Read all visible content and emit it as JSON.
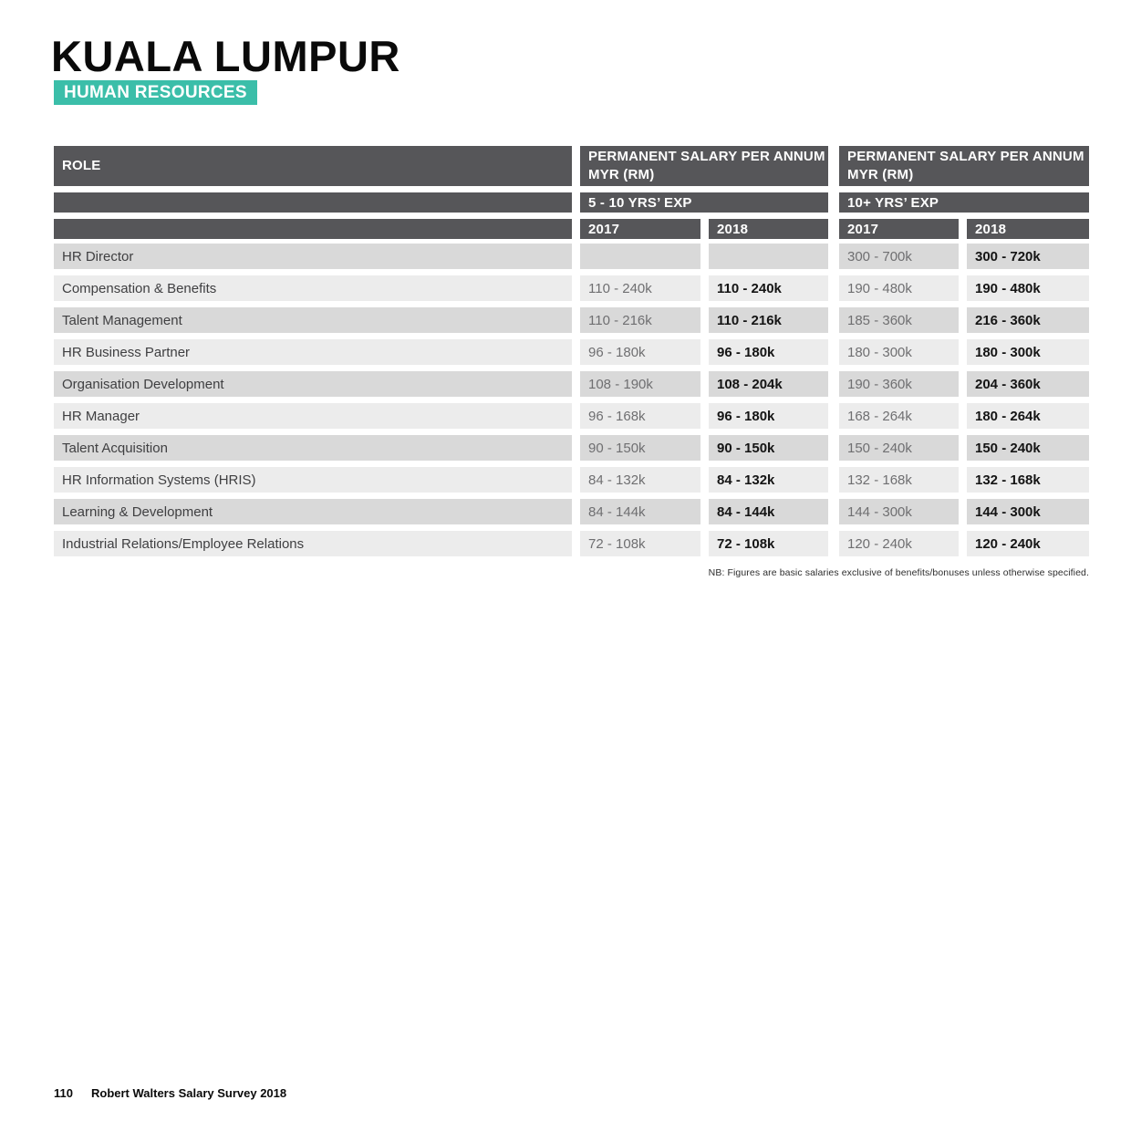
{
  "page": {
    "title": "KUALA LUMPUR",
    "category_badge": "HUMAN RESOURCES",
    "footnote": "NB: Figures are basic salaries exclusive of benefits/bonuses unless otherwise specified.",
    "footer": {
      "page_number": "110",
      "label": "Robert Walters Salary Survey 2018"
    }
  },
  "colors": {
    "accent_teal": "#3bbea9",
    "header_gray": "#565659",
    "row_shade_dark": "#d9d9d9",
    "row_shade_light": "#ececec"
  },
  "table": {
    "role_header": "ROLE",
    "groups": [
      {
        "title": "PERMANENT SALARY PER ANNUM MYR (RM)",
        "experience": "5 - 10 YRS’ EXP",
        "years": [
          "2017",
          "2018"
        ]
      },
      {
        "title": "PERMANENT SALARY PER ANNUM MYR (RM)",
        "experience": "10+ YRS’ EXP",
        "years": [
          "2017",
          "2018"
        ]
      }
    ],
    "rows": [
      {
        "role": "HR Director",
        "values": [
          "",
          "",
          "300 - 700k",
          "300 - 720k"
        ]
      },
      {
        "role": "Compensation & Benefits",
        "values": [
          "110 - 240k",
          "110 - 240k",
          "190 - 480k",
          "190 - 480k"
        ]
      },
      {
        "role": "Talent Management",
        "values": [
          "110 - 216k",
          "110 - 216k",
          "185 - 360k",
          "216 - 360k"
        ]
      },
      {
        "role": "HR Business Partner",
        "values": [
          "96 - 180k",
          "96 - 180k",
          "180 - 300k",
          "180 - 300k"
        ]
      },
      {
        "role": "Organisation Development",
        "values": [
          "108 - 190k",
          "108 - 204k",
          "190 - 360k",
          "204 - 360k"
        ]
      },
      {
        "role": "HR Manager",
        "values": [
          "96 - 168k",
          "96 - 180k",
          "168 - 264k",
          "180 - 264k"
        ]
      },
      {
        "role": "Talent Acquisition",
        "values": [
          "90 - 150k",
          "90 - 150k",
          "150 - 240k",
          "150 - 240k"
        ]
      },
      {
        "role": "HR Information Systems (HRIS)",
        "values": [
          "84 - 132k",
          "84 - 132k",
          "132 - 168k",
          "132 - 168k"
        ]
      },
      {
        "role": "Learning & Development",
        "values": [
          "84 - 144k",
          "84 - 144k",
          "144 - 300k",
          "144 - 300k"
        ]
      },
      {
        "role": "Industrial Relations/Employee Relations",
        "values": [
          "72 - 108k",
          "72 - 108k",
          "120 - 240k",
          "120 - 240k"
        ]
      }
    ]
  }
}
